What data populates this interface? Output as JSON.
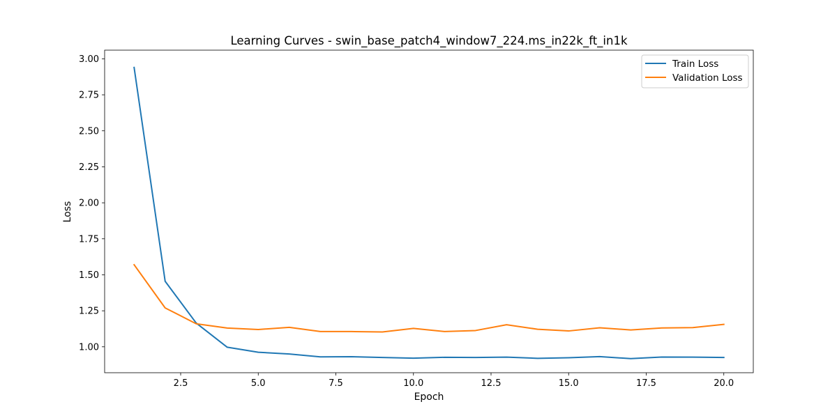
{
  "chart_data": {
    "type": "line",
    "title": "Learning Curves - swin_base_patch4_window7_224.ms_in22k_ft_in1k",
    "xlabel": "Epoch",
    "ylabel": "Loss",
    "xlim": [
      0.05,
      20.95
    ],
    "ylim": [
      0.82,
      3.06
    ],
    "x": [
      1,
      2,
      3,
      4,
      5,
      6,
      7,
      8,
      9,
      10,
      11,
      12,
      13,
      14,
      15,
      16,
      17,
      18,
      19,
      20
    ],
    "xticks": [
      2.5,
      5.0,
      7.5,
      10.0,
      12.5,
      15.0,
      17.5,
      20.0
    ],
    "xtick_labels": [
      "2.5",
      "5.0",
      "7.5",
      "10.0",
      "12.5",
      "15.0",
      "17.5",
      "20.0"
    ],
    "yticks": [
      1.0,
      1.25,
      1.5,
      1.75,
      2.0,
      2.25,
      2.5,
      2.75,
      3.0
    ],
    "ytick_labels": [
      "1.00",
      "1.25",
      "1.50",
      "1.75",
      "2.00",
      "2.25",
      "2.50",
      "2.75",
      "3.00"
    ],
    "grid": false,
    "legend_position": "top-right",
    "series": [
      {
        "name": "Train Loss",
        "color": "#1f77b4",
        "values": [
          2.94,
          1.455,
          1.165,
          0.997,
          0.962,
          0.95,
          0.93,
          0.931,
          0.926,
          0.921,
          0.927,
          0.926,
          0.928,
          0.92,
          0.924,
          0.932,
          0.918,
          0.929,
          0.928,
          0.926
        ]
      },
      {
        "name": "Validation Loss",
        "color": "#ff7f0e",
        "values": [
          1.57,
          1.27,
          1.16,
          1.13,
          1.12,
          1.135,
          1.106,
          1.106,
          1.103,
          1.128,
          1.106,
          1.113,
          1.153,
          1.122,
          1.11,
          1.132,
          1.117,
          1.131,
          1.133,
          1.156
        ]
      }
    ]
  }
}
